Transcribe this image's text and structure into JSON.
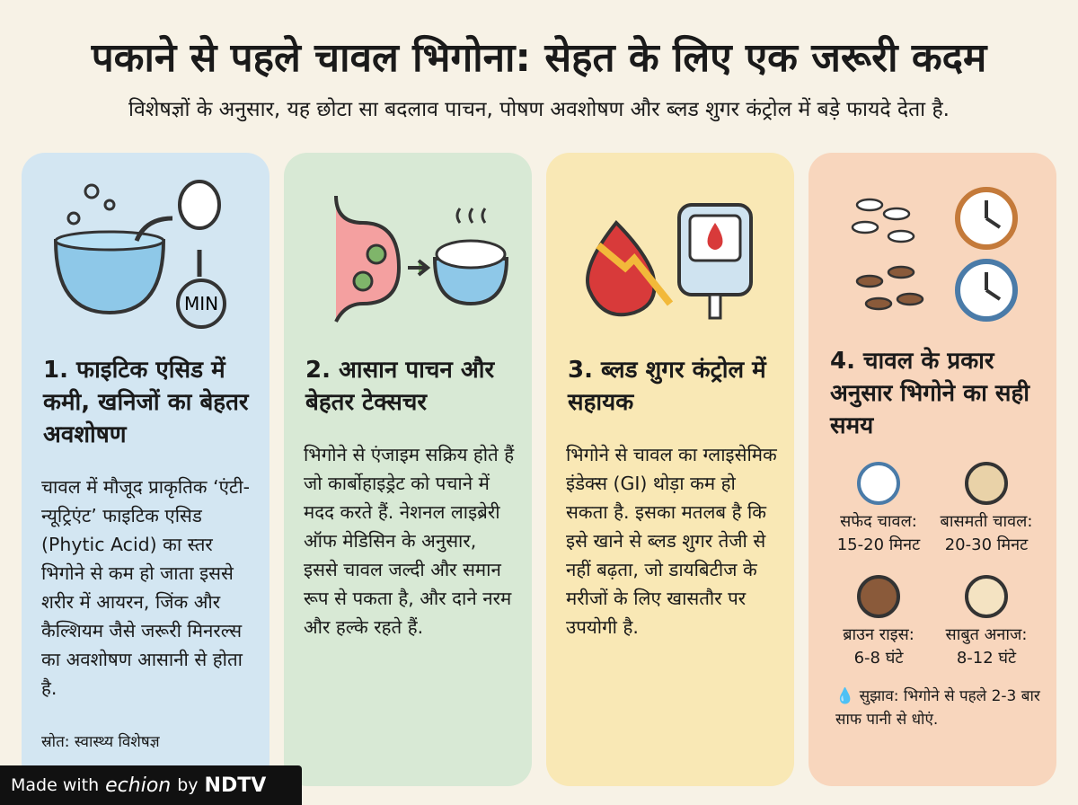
{
  "header": {
    "title": "पकाने से पहले चावल भिगोना: सेहत के लिए एक जरूरी कदम",
    "subtitle": "विशेषज्ञों के अनुसार, यह छोटा सा बदलाव पाचन, पोषण अवशोषण और ब्लड शुगर कंट्रोल में बड़े फायदे देता है."
  },
  "cards": [
    {
      "icon_label": "MIN",
      "heading": "1. फाइटिक एसिड में कमी, खनिजों का बेहतर अवशोषण",
      "body": "चावल में मौजूद प्राकृतिक ‘एंटी-न्यूट्रिएंट’ फाइटिक एसिड (Phytic Acid) का स्तर भिगोने से कम हो जाता इससे शरीर में आयरन, जिंक और कैल्शियम जैसे जरूरी मिनरल्स का अवशोषण आसानी से होता है.",
      "source": "स्रोत: स्वास्थ्य विशेषज्ञ"
    },
    {
      "heading": "2. आसान पाचन और बेहतर टेक्सचर",
      "body": "भिगोने से एंजाइम सक्रिय होते हैं जो कार्बोहाइड्रेट को पचाने में मदद करते हैं. नेशनल लाइब्रेरी ऑफ मेडिसिन के अनुसार, इससे चावल जल्दी और समान रूप से पकता है, और दाने नरम और हल्के रहते हैं."
    },
    {
      "heading": "3. ब्लड शुगर कंट्रोल में सहायक",
      "body": "भिगोने से चावल का ग्लाइसेमिक इंडेक्स (GI) थोड़ा कम हो सकता है. इसका मतलब है कि इसे खाने से ब्लड शुगर तेजी से नहीं बढ़ता, जो डायबिटीज के मरीजों के लिए खासतौर पर उपयोगी है."
    },
    {
      "heading": "4. चावल के प्रकार अनुसार भिगोने का सही समय",
      "items": [
        {
          "name": "सफेद चावल:",
          "time": "15-20 मिनट"
        },
        {
          "name": "बासमती चावल:",
          "time": "20-30 मिनट"
        },
        {
          "name": "ब्राउन राइस:",
          "time": "6-8 घंटे"
        },
        {
          "name": "साबुत अनाज:",
          "time": "8-12 घंटे"
        }
      ],
      "tip": "सुझाव: भिगोने से पहले 2-3 बार साफ पानी से धोएं."
    }
  ],
  "footer": {
    "made_with": "Made with",
    "brand": "echion",
    "by": "by",
    "partner": "NDTV"
  }
}
